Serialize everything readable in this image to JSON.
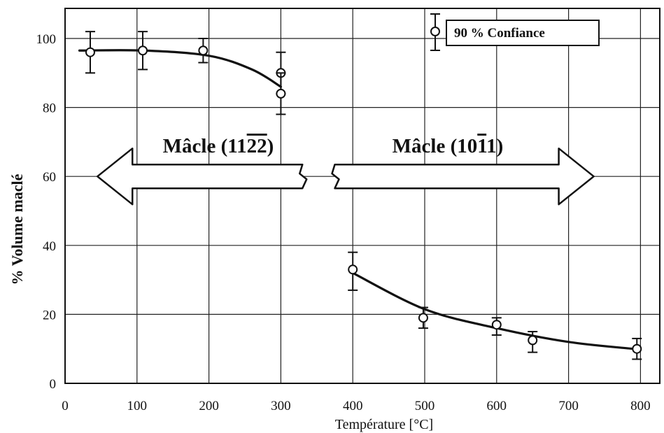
{
  "chart_data": {
    "type": "scatter",
    "xlabel": "Température [°C]",
    "ylabel": "% Volume maclé",
    "xlim": [
      0,
      850
    ],
    "ylim": [
      0,
      110
    ],
    "x_ticks": [
      0,
      100,
      200,
      300,
      400,
      500,
      600,
      700,
      800
    ],
    "y_ticks": [
      0,
      20,
      40,
      60,
      80,
      100
    ],
    "grid": true,
    "legend": {
      "label": "90 % Confiance",
      "position": "top-right"
    },
    "series": [
      {
        "points": [
          {
            "x": 35,
            "y": 96,
            "low": 90,
            "high": 102
          },
          {
            "x": 108,
            "y": 96.5,
            "low": 91,
            "high": 102
          },
          {
            "x": 192,
            "y": 96.5,
            "low": 93,
            "high": 100
          },
          {
            "x": 300,
            "y": 90,
            "low": 84,
            "high": 96
          },
          {
            "x": 300,
            "y": 84,
            "low": 78,
            "high": 90
          }
        ],
        "fit": [
          [
            20,
            96.5
          ],
          [
            110,
            96.5
          ],
          [
            200,
            95
          ],
          [
            260,
            91
          ],
          [
            300,
            86
          ]
        ]
      },
      {
        "points": [
          {
            "x": 400,
            "y": 33,
            "low": 27,
            "high": 38
          },
          {
            "x": 498,
            "y": 19,
            "low": 16,
            "high": 22
          },
          {
            "x": 600,
            "y": 17,
            "low": 14,
            "high": 19
          },
          {
            "x": 650,
            "y": 12.5,
            "low": 9,
            "high": 15
          },
          {
            "x": 795,
            "y": 10,
            "low": 7,
            "high": 13
          }
        ],
        "fit": [
          [
            400,
            32
          ],
          [
            500,
            21.5
          ],
          [
            600,
            16
          ],
          [
            700,
            12
          ],
          [
            790,
            10
          ]
        ]
      }
    ],
    "annotations": [
      {
        "label": "Mâcle (11",
        "bar": "22",
        "suffix": ")",
        "direction": "left",
        "x_from": 330,
        "x_to": 45,
        "y": 60
      },
      {
        "label": "Mâcle (10",
        "bar": "1",
        "suffix": "1)",
        "direction": "right",
        "x_from": 375,
        "x_to": 735,
        "y": 60
      }
    ]
  }
}
